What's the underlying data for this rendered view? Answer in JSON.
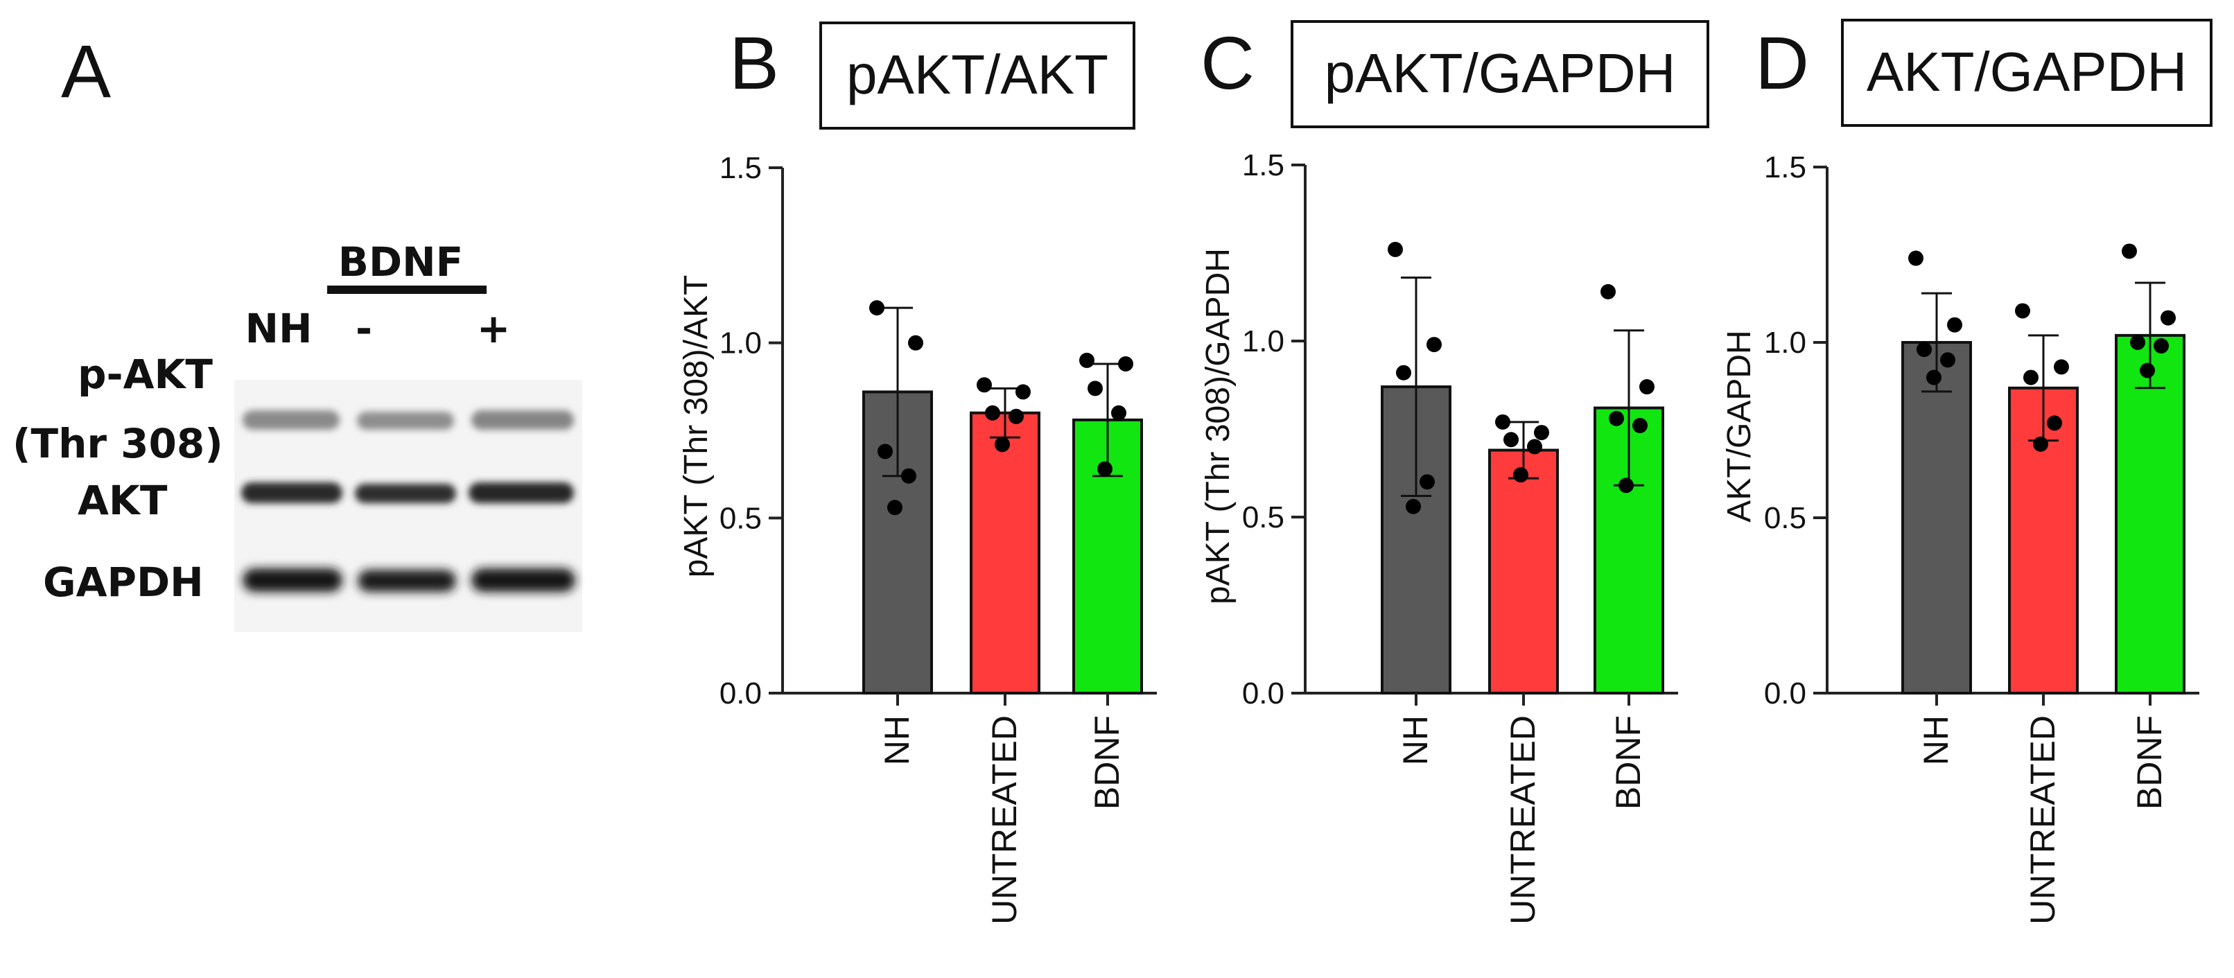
{
  "panel_a": {
    "letter": "A",
    "treatment_label": "BDNF",
    "lanes": [
      "NH",
      "-",
      "+"
    ],
    "rows": [
      "p-AKT",
      "(Thr 308)",
      "AKT",
      "GAPDH"
    ]
  },
  "colors": {
    "NH": "#595959",
    "UNTREATED": "#ff3b3b",
    "BDNF": "#11e611",
    "axis": "#222222"
  },
  "chart_data": [
    {
      "type": "bar",
      "letter": "B",
      "title": "pAKT/AKT",
      "ylabel": "pAKT (Thr 308)/AKT",
      "categories": [
        "NH",
        "UNTREATED",
        "BDNF"
      ],
      "values": [
        0.86,
        0.8,
        0.78
      ],
      "sd": [
        0.24,
        0.07,
        0.16
      ],
      "points": [
        [
          1.1,
          1.0,
          0.69,
          0.62,
          0.53
        ],
        [
          0.88,
          0.86,
          0.8,
          0.79,
          0.71
        ],
        [
          0.95,
          0.94,
          0.87,
          0.8,
          0.64
        ]
      ],
      "ylim": [
        0,
        1.5
      ],
      "yticks": [
        "0.0",
        "0.5",
        "1.0",
        "1.5"
      ]
    },
    {
      "type": "bar",
      "letter": "C",
      "title": "pAKT/GAPDH",
      "ylabel": "pAKT (Thr 308)/GAPDH",
      "categories": [
        "NH",
        "UNTREATED",
        "BDNF"
      ],
      "values": [
        0.87,
        0.69,
        0.81
      ],
      "sd": [
        0.31,
        0.08,
        0.22
      ],
      "points": [
        [
          1.26,
          0.99,
          0.91,
          0.6,
          0.53
        ],
        [
          0.77,
          0.74,
          0.72,
          0.7,
          0.62
        ],
        [
          1.14,
          0.87,
          0.78,
          0.76,
          0.59
        ]
      ],
      "ylim": [
        0,
        1.5
      ],
      "yticks": [
        "0.0",
        "0.5",
        "1.0",
        "1.5"
      ]
    },
    {
      "type": "bar",
      "letter": "D",
      "title": "AKT/GAPDH",
      "ylabel": "AKT/GAPDH",
      "categories": [
        "NH",
        "UNTREATED",
        "BDNF"
      ],
      "values": [
        1.0,
        0.87,
        1.02
      ],
      "sd": [
        0.14,
        0.15,
        0.15
      ],
      "points": [
        [
          1.24,
          1.05,
          0.98,
          0.95,
          0.9
        ],
        [
          1.09,
          0.93,
          0.9,
          0.77,
          0.71
        ],
        [
          1.26,
          1.07,
          1.0,
          0.99,
          0.92
        ]
      ],
      "ylim": [
        0,
        1.5
      ],
      "yticks": [
        "0.0",
        "0.5",
        "1.0",
        "1.5"
      ]
    }
  ]
}
